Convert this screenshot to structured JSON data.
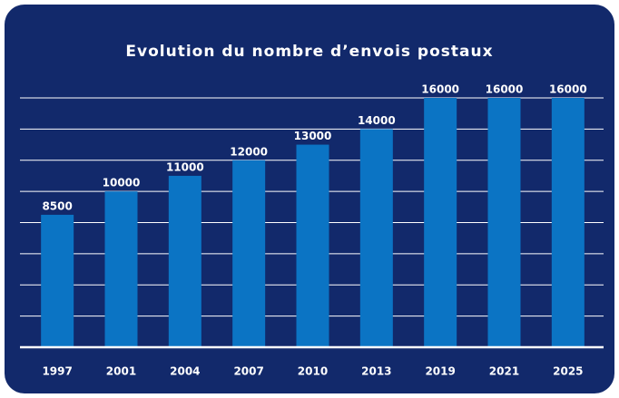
{
  "chart_data": {
    "type": "bar",
    "title": "Evolution du nombre d’envois postaux",
    "categories": [
      "1997",
      "2001",
      "2004",
      "2007",
      "2010",
      "2013",
      "2019",
      "2021",
      "2025"
    ],
    "values": [
      8500,
      10000,
      11000,
      12000,
      13000,
      14000,
      16000,
      16000,
      16000
    ],
    "color": "#0b74c4",
    "ylim": [
      0,
      16000
    ],
    "yticks": [
      0,
      2000,
      4000,
      6000,
      8000,
      10000,
      12000,
      14000,
      16000
    ],
    "grid": true
  }
}
